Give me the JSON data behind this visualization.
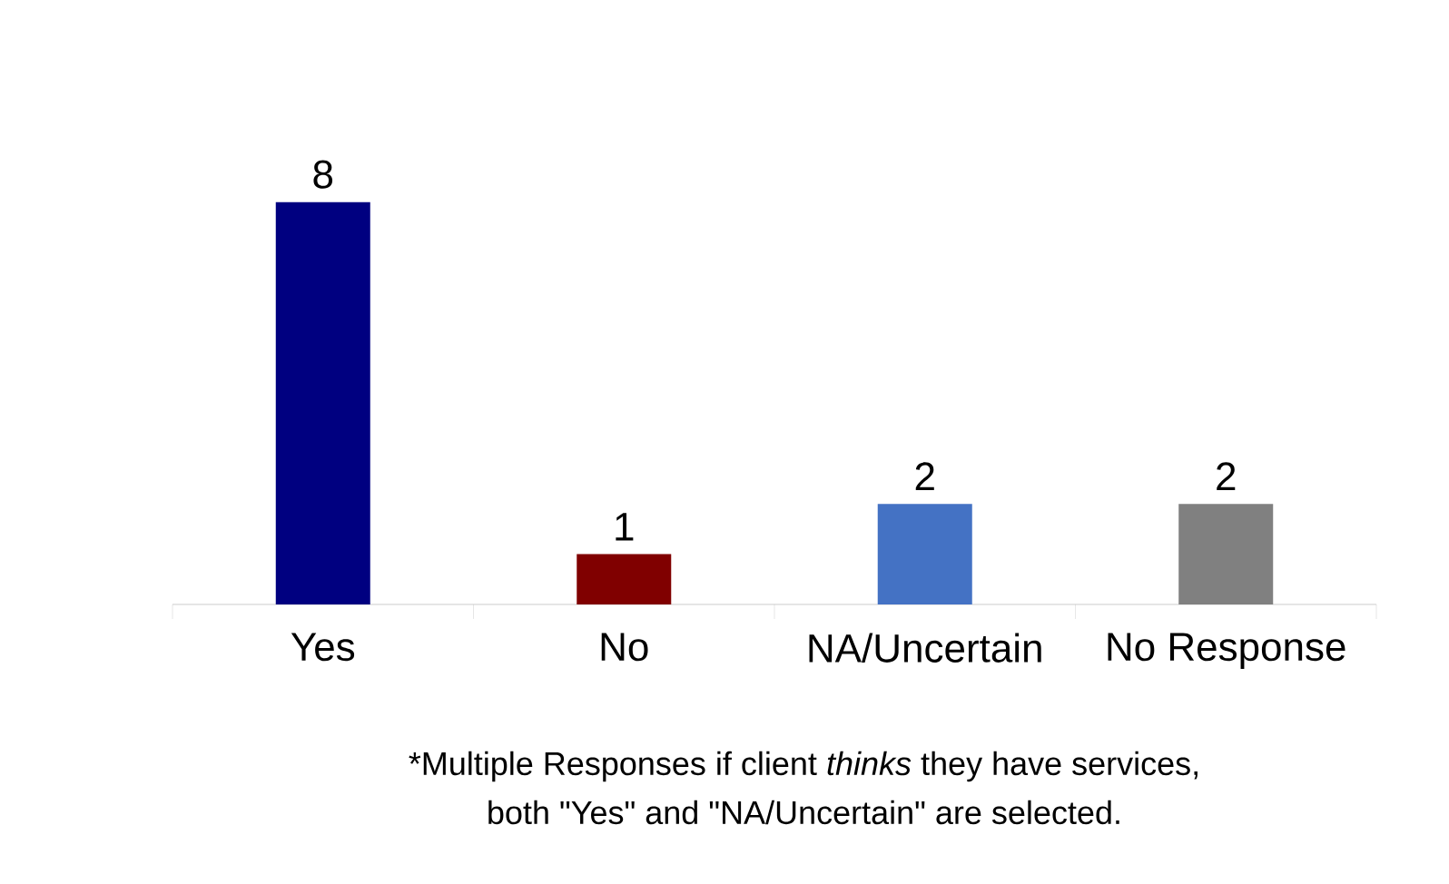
{
  "chart_data": {
    "type": "bar",
    "categories": [
      "Yes",
      "No",
      "NA/Uncertain",
      "No Response"
    ],
    "values": [
      8,
      1,
      2,
      2
    ],
    "colors": [
      "#000080",
      "#800000",
      "#4472c4",
      "#808080"
    ],
    "data_labels": true,
    "annotations": [
      "*Multiple Responses if client *thinks* they have services, both \"Yes\" and \"NA/Uncertain\" are selected."
    ]
  }
}
